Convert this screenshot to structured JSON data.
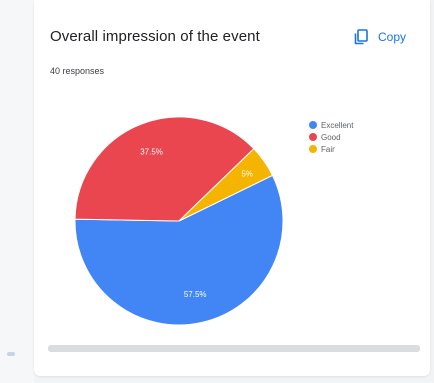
{
  "card": {
    "title": "Overall impression of the event",
    "responses": "40 responses",
    "copy_label": "Copy",
    "copy_icon": "copy-icon"
  },
  "colors": {
    "accent": "#1a73e8",
    "excellent": "#4285f4",
    "good": "#ea4650",
    "fair": "#f4b400"
  },
  "chart_data": {
    "type": "pie",
    "title": "Overall impression of the event",
    "subtitle": "40 responses",
    "legend_position": "right",
    "slices": [
      {
        "label": "Excellent",
        "value": 57.5,
        "display": "57.5%",
        "color": "#4285f4"
      },
      {
        "label": "Good",
        "value": 37.5,
        "display": "37.5%",
        "color": "#ea4650"
      },
      {
        "label": "Fair",
        "value": 5,
        "display": "5%",
        "color": "#f4b400"
      }
    ]
  }
}
